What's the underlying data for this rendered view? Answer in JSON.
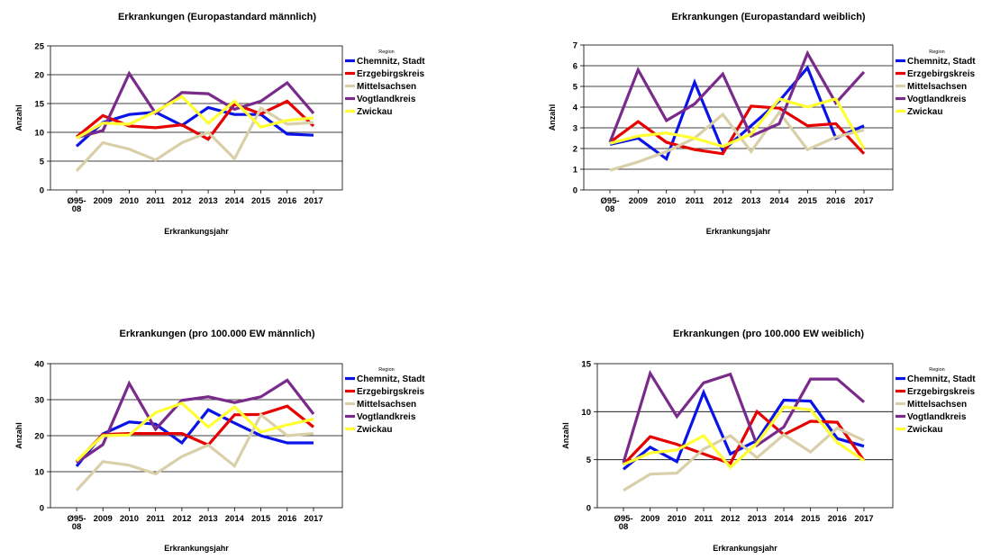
{
  "colors": {
    "Chemnitz, Stadt": "#0a14e6",
    "Erzgebirgskreis": "#e60000",
    "Mittelsachsen": "#d9cfa8",
    "Vogtlandkreis": "#7a2a8a",
    "Zwickau": "#ffff33"
  },
  "chart_data": [
    {
      "type": "line",
      "title": "Erkrankungen (Europastandard männlich)",
      "xlabel": "Erkrankungsjahr",
      "ylabel": "Anzahl",
      "legend_title": "Region",
      "legend_position": "right",
      "grid": true,
      "ylim": [
        0,
        25
      ],
      "yticks": [
        0,
        5,
        10,
        15,
        20,
        25
      ],
      "categories": [
        "Ø95-08",
        "2009",
        "2010",
        "2011",
        "2012",
        "2013",
        "2014",
        "2015",
        "2016",
        "2017"
      ],
      "series": [
        {
          "name": "Chemnitz, Stadt",
          "values": [
            7.6,
            11.7,
            13.1,
            13.5,
            11.2,
            14.3,
            13.1,
            13.1,
            9.7,
            9.5
          ]
        },
        {
          "name": "Erzgebirgskreis",
          "values": [
            9.2,
            12.9,
            11.1,
            10.8,
            11.3,
            8.8,
            14.9,
            13.2,
            15.4,
            11.1
          ]
        },
        {
          "name": "Mittelsachsen",
          "values": [
            3.3,
            8.2,
            7.1,
            5.2,
            8.2,
            10.0,
            5.4,
            14.2,
            11.4,
            11.7
          ]
        },
        {
          "name": "Vogtlandkreis",
          "values": [
            9.1,
            10.3,
            20.2,
            13.3,
            16.9,
            16.7,
            14.0,
            15.4,
            18.6,
            13.3
          ]
        },
        {
          "name": "Zwickau",
          "values": [
            9.0,
            11.6,
            11.4,
            13.6,
            16.2,
            11.6,
            15.4,
            10.9,
            12.1,
            12.5
          ]
        }
      ]
    },
    {
      "type": "line",
      "title": "Erkrankungen (Europastandard weiblich)",
      "xlabel": "Erkrankungsjahr",
      "ylabel": "Anzahl",
      "legend_title": "Region",
      "legend_position": "right",
      "grid": true,
      "ylim": [
        0,
        7
      ],
      "yticks": [
        0,
        1,
        2,
        3,
        4,
        5,
        6,
        7
      ],
      "categories": [
        "Ø95-08",
        "2009",
        "2010",
        "2011",
        "2012",
        "2013",
        "2014",
        "2015",
        "2016",
        "2017"
      ],
      "series": [
        {
          "name": "Chemnitz, Stadt",
          "values": [
            2.2,
            2.5,
            1.5,
            5.2,
            1.9,
            3.1,
            4.3,
            5.9,
            2.5,
            3.1
          ]
        },
        {
          "name": "Erzgebirgskreis",
          "values": [
            2.3,
            3.3,
            2.3,
            1.95,
            1.75,
            4.05,
            3.95,
            3.1,
            3.2,
            1.75
          ]
        },
        {
          "name": "Mittelsachsen",
          "values": [
            0.95,
            1.35,
            1.85,
            2.5,
            3.65,
            1.85,
            3.75,
            1.95,
            2.55,
            2.9
          ]
        },
        {
          "name": "Vogtlandkreis",
          "values": [
            2.3,
            5.8,
            3.35,
            4.15,
            5.6,
            2.6,
            3.2,
            6.6,
            4.2,
            5.7
          ]
        },
        {
          "name": "Zwickau",
          "values": [
            2.25,
            2.6,
            2.75,
            2.5,
            2.1,
            2.7,
            4.4,
            4.0,
            4.4,
            2.0
          ]
        }
      ]
    },
    {
      "type": "line",
      "title": "Erkrankungen (pro 100.000 EW männlich)",
      "xlabel": "Erkrankungsjahr",
      "ylabel": "Anzahl",
      "legend_title": "Region",
      "legend_position": "right",
      "grid": true,
      "ylim": [
        0,
        40
      ],
      "yticks": [
        0,
        10,
        20,
        30,
        40
      ],
      "categories": [
        "Ø95-08",
        "2009",
        "2010",
        "2011",
        "2012",
        "2013",
        "2014",
        "2015",
        "2016",
        "2017"
      ],
      "series": [
        {
          "name": "Chemnitz, Stadt",
          "values": [
            11.5,
            20.5,
            23.8,
            23.2,
            18.0,
            27.2,
            23.5,
            20.0,
            18.0,
            18.0
          ]
        },
        {
          "name": "Erzgebirgskreis",
          "values": [
            12.8,
            20.3,
            20.6,
            20.6,
            20.6,
            17.4,
            25.8,
            25.9,
            28.2,
            22.4
          ]
        },
        {
          "name": "Mittelsachsen",
          "values": [
            4.8,
            12.8,
            11.8,
            9.4,
            14.2,
            17.4,
            11.6,
            25.8,
            20.0,
            20.6
          ]
        },
        {
          "name": "Vogtlandkreis",
          "values": [
            12.5,
            17.5,
            34.5,
            21.8,
            29.8,
            30.8,
            29.2,
            30.8,
            35.4,
            26.0
          ]
        },
        {
          "name": "Zwickau",
          "values": [
            13.0,
            20.0,
            20.2,
            26.4,
            29.0,
            22.4,
            28.0,
            21.0,
            23.0,
            24.6
          ]
        }
      ]
    },
    {
      "type": "line",
      "title": "Erkrankungen (pro 100.000 EW weiblich)",
      "xlabel": "Erkrankungsjahr",
      "ylabel": "Anzahl",
      "legend_title": "Region",
      "legend_position": "right",
      "grid": true,
      "ylim": [
        0,
        15
      ],
      "yticks": [
        0,
        5,
        10,
        15
      ],
      "categories": [
        "Ø95-08",
        "2009",
        "2010",
        "2011",
        "2012",
        "2013",
        "2014",
        "2015",
        "2016",
        "2017"
      ],
      "series": [
        {
          "name": "Chemnitz, Stadt",
          "values": [
            4.0,
            6.3,
            4.8,
            12.0,
            5.6,
            7.0,
            11.2,
            11.1,
            7.2,
            6.4
          ]
        },
        {
          "name": "Erzgebirgskreis",
          "values": [
            4.5,
            7.4,
            6.6,
            5.6,
            4.6,
            10.0,
            7.6,
            9.0,
            8.9,
            4.9
          ]
        },
        {
          "name": "Mittelsachsen",
          "values": [
            1.8,
            3.5,
            3.6,
            6.1,
            7.5,
            5.2,
            7.6,
            5.8,
            8.3,
            7.0
          ]
        },
        {
          "name": "Vogtlandkreis",
          "values": [
            4.7,
            14.0,
            9.5,
            13.0,
            13.9,
            6.5,
            8.4,
            13.4,
            13.4,
            11.0
          ]
        },
        {
          "name": "Zwickau",
          "values": [
            4.5,
            5.7,
            6.0,
            7.5,
            4.2,
            6.7,
            10.5,
            10.2,
            6.8,
            4.9
          ]
        }
      ]
    }
  ]
}
